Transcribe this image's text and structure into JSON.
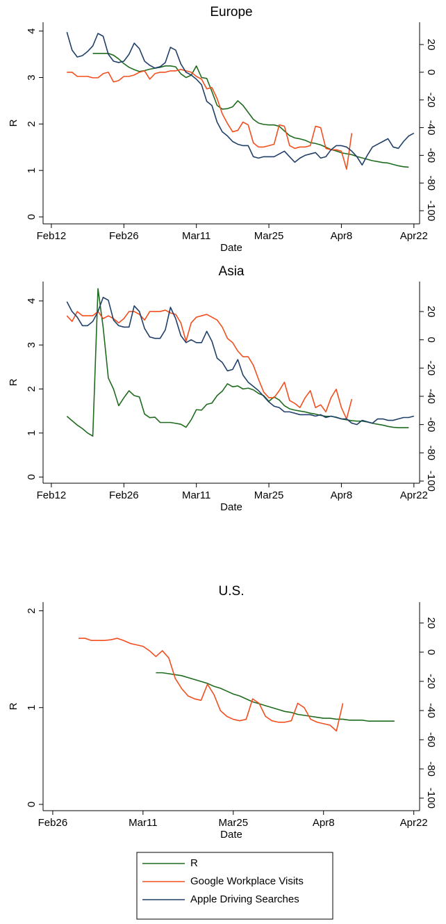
{
  "chart_data": [
    {
      "type": "line",
      "title": "Europe",
      "xlabel": "Date",
      "ylabel": "R",
      "x": [
        46,
        47,
        48,
        49,
        50,
        51,
        52,
        53,
        54,
        55,
        56,
        57,
        58,
        59,
        60,
        61,
        62,
        63,
        64,
        65,
        66,
        67,
        68,
        69,
        70,
        71,
        72,
        73,
        74,
        75,
        76,
        77,
        78,
        79,
        80,
        81,
        82,
        83,
        84,
        85,
        86,
        87,
        88,
        89,
        90,
        91,
        92,
        93,
        94,
        95,
        96,
        97,
        98,
        99,
        100,
        101,
        102,
        103,
        104,
        105,
        106,
        107,
        108,
        109,
        110,
        111,
        112,
        113
      ],
      "xlim": [
        41.4,
        114.1
      ],
      "xticks": [
        {
          "value": 43,
          "label": "Feb12"
        },
        {
          "value": 57,
          "label": "Feb26"
        },
        {
          "value": 71,
          "label": "Mar11"
        },
        {
          "value": 85,
          "label": "Mar25"
        },
        {
          "value": 99,
          "label": "Apr8"
        },
        {
          "value": 113,
          "label": "Apr22"
        }
      ],
      "ylim": [
        -0.15,
        4.19
      ],
      "yticks": [
        0,
        1,
        2,
        3,
        4
      ],
      "y2lim": [
        -109.5,
        36.1
      ],
      "y2ticks": [
        -100,
        -80,
        -60,
        -40,
        -20,
        0,
        20
      ],
      "series": [
        {
          "name": "R",
          "color": "#1e6b1e",
          "values": [
            null,
            null,
            null,
            null,
            null,
            3.52,
            3.52,
            3.52,
            3.52,
            3.48,
            3.4,
            3.3,
            3.22,
            3.17,
            3.13,
            3.15,
            3.18,
            3.2,
            3.22,
            3.25,
            3.25,
            3.23,
            3.08,
            3.0,
            3.05,
            3.25,
            3.0,
            2.98,
            2.7,
            2.4,
            2.32,
            2.33,
            2.37,
            2.5,
            2.4,
            2.25,
            2.1,
            2.02,
            1.99,
            1.98,
            1.98,
            1.95,
            1.85,
            1.75,
            1.7,
            1.68,
            1.65,
            1.6,
            1.58,
            1.55,
            1.5,
            1.45,
            1.42,
            1.38,
            1.36,
            1.34,
            1.3,
            1.27,
            1.24,
            1.21,
            1.19,
            1.17,
            1.16,
            1.13,
            1.1,
            1.08,
            1.07,
            null
          ]
        },
        {
          "name": "Google Workplace Visits",
          "color": "#f24e1e",
          "axis": "y2",
          "values": [
            0,
            0,
            -3,
            -3,
            -3,
            -4,
            -4,
            -1,
            0,
            -7,
            -6,
            -3,
            -3,
            -2,
            0,
            1,
            -5,
            -1,
            0,
            0,
            1,
            1,
            2,
            1,
            0,
            -3,
            -5,
            -12,
            -11,
            -19,
            -30,
            -37,
            -43,
            -42,
            -36,
            -38,
            -51,
            -54,
            -54,
            -53,
            -52,
            -38,
            -39,
            -53,
            -55,
            -54,
            -54,
            -53,
            -39,
            -40,
            -55,
            -56,
            -56,
            -57,
            -70,
            -44,
            null,
            null,
            null,
            null,
            null,
            null,
            null,
            null,
            null,
            null,
            null,
            null
          ]
        },
        {
          "name": "Apple Driving Searches",
          "color": "#1f3f68",
          "axis": "y2",
          "values": [
            29,
            16,
            11,
            12,
            15,
            19,
            28,
            26,
            13,
            8,
            7,
            8,
            13,
            21,
            17,
            8,
            5,
            3,
            4,
            7,
            18,
            16,
            6,
            0,
            -2,
            -5,
            -9,
            -21,
            -24,
            -36,
            -43,
            -46,
            -50,
            -52,
            -53,
            -53,
            -61,
            -62,
            -61,
            -61,
            -61,
            -59,
            -57,
            -61,
            -65,
            -62,
            -60,
            -59,
            -58,
            -62,
            -61,
            -56,
            -53,
            -53,
            -54,
            -57,
            -61,
            -67,
            -60,
            -54,
            -52,
            -50,
            -48,
            -54,
            -55,
            -50,
            -46,
            -44
          ]
        }
      ]
    },
    {
      "type": "line",
      "title": "Asia",
      "xlabel": "Date",
      "ylabel": "R",
      "x": [
        46,
        47,
        48,
        49,
        50,
        51,
        52,
        53,
        54,
        55,
        56,
        57,
        58,
        59,
        60,
        61,
        62,
        63,
        64,
        65,
        66,
        67,
        68,
        69,
        70,
        71,
        72,
        73,
        74,
        75,
        76,
        77,
        78,
        79,
        80,
        81,
        82,
        83,
        84,
        85,
        86,
        87,
        88,
        89,
        90,
        91,
        92,
        93,
        94,
        95,
        96,
        97,
        98,
        99,
        100,
        101,
        102,
        103,
        104,
        105,
        106,
        107,
        108,
        109,
        110,
        111,
        112,
        113
      ],
      "xlim": [
        41.4,
        114.1
      ],
      "xticks": [
        {
          "value": 43,
          "label": "Feb12"
        },
        {
          "value": 57,
          "label": "Feb26"
        },
        {
          "value": 71,
          "label": "Mar11"
        },
        {
          "value": 85,
          "label": "Mar25"
        },
        {
          "value": 99,
          "label": "Apr8"
        },
        {
          "value": 113,
          "label": "Apr22"
        }
      ],
      "ylim": [
        -0.14,
        4.44
      ],
      "yticks": [
        0,
        1,
        2,
        3,
        4
      ],
      "y2lim": [
        -101.5,
        41.2
      ],
      "y2ticks": [
        -100,
        -80,
        -60,
        -40,
        -20,
        0,
        20
      ],
      "series": [
        {
          "name": "R",
          "color": "#1e6b1e",
          "values": [
            1.38,
            1.28,
            1.18,
            1.1,
            1.0,
            0.93,
            4.28,
            3.4,
            2.25,
            2.0,
            1.62,
            1.8,
            1.96,
            1.85,
            1.82,
            1.43,
            1.35,
            1.36,
            1.24,
            1.24,
            1.24,
            1.22,
            1.2,
            1.13,
            1.3,
            1.53,
            1.52,
            1.65,
            1.68,
            1.85,
            1.95,
            2.12,
            2.05,
            2.07,
            2.0,
            2.02,
            1.98,
            1.9,
            1.85,
            1.72,
            1.82,
            1.75,
            1.62,
            1.55,
            1.52,
            1.5,
            1.48,
            1.45,
            1.43,
            1.4,
            1.38,
            1.38,
            1.36,
            1.32,
            1.3,
            1.28,
            1.27,
            1.27,
            1.25,
            1.22,
            1.2,
            1.18,
            1.15,
            1.13,
            1.12,
            1.12,
            1.12,
            null
          ]
        },
        {
          "name": "Google Workplace Visits",
          "color": "#f24e1e",
          "axis": "y2",
          "values": [
            17,
            13,
            20,
            17,
            17,
            17,
            20,
            15,
            17,
            15,
            12,
            15,
            20,
            20,
            18,
            14,
            20,
            20,
            20,
            21,
            19,
            18,
            12,
            -1,
            12,
            16,
            17,
            18,
            16,
            14,
            9,
            1,
            -2,
            -8,
            -12,
            -12,
            -18,
            -28,
            -37,
            -41,
            -41,
            -36,
            -30,
            -43,
            -45,
            -48,
            -41,
            -36,
            -48,
            -46,
            -51,
            -41,
            -35,
            -48,
            -56,
            -42,
            null,
            null,
            null,
            null,
            null,
            null,
            null,
            null,
            null,
            null,
            null,
            null
          ]
        },
        {
          "name": "Apple Driving Searches",
          "color": "#1f3f68",
          "axis": "y2",
          "values": [
            27,
            20,
            16,
            10,
            10,
            13,
            20,
            30,
            28,
            14,
            10,
            9,
            9,
            24,
            20,
            8,
            2,
            1,
            1,
            7,
            23,
            15,
            3,
            -2,
            0,
            -2,
            -2,
            6,
            -1,
            -13,
            -16,
            -22,
            -21,
            -14,
            -25,
            -30,
            -33,
            -36,
            -40,
            -44,
            -47,
            -48,
            -51,
            -51,
            -52,
            -53,
            -53,
            -53,
            -54,
            -53,
            -55,
            -54,
            -55,
            -56,
            -56,
            -59,
            -60,
            -57,
            -58,
            -59,
            -56,
            -56,
            -57,
            -57,
            -56,
            -55,
            -55,
            -54
          ]
        }
      ]
    },
    {
      "type": "line",
      "title": "U.S.",
      "xlabel": "Date",
      "ylabel": "R",
      "x": [
        61,
        62,
        63,
        64,
        65,
        66,
        67,
        68,
        69,
        70,
        71,
        72,
        73,
        74,
        75,
        76,
        77,
        78,
        79,
        80,
        81,
        82,
        83,
        84,
        85,
        86,
        87,
        88,
        89,
        90,
        91,
        92,
        93,
        94,
        95,
        96,
        97,
        98,
        99,
        100,
        101,
        102,
        103,
        104,
        105,
        106,
        107,
        108,
        109,
        110
      ],
      "xlim": [
        55.5,
        113.9
      ],
      "xticks": [
        {
          "value": 57,
          "label": "Feb26"
        },
        {
          "value": 71,
          "label": "Mar11"
        },
        {
          "value": 85,
          "label": "Mar25"
        },
        {
          "value": 99,
          "label": "Apr8"
        },
        {
          "value": 113,
          "label": "Apr22"
        }
      ],
      "ylim": [
        -0.065,
        2.09
      ],
      "yticks": [
        0,
        1,
        2
      ],
      "y2lim": [
        -108.6,
        34.3
      ],
      "y2ticks": [
        -100,
        -80,
        -60,
        -40,
        -20,
        0,
        20
      ],
      "series": [
        {
          "name": "R",
          "color": "#1e6b1e",
          "values": [
            null,
            null,
            null,
            null,
            null,
            null,
            null,
            null,
            null,
            null,
            null,
            null,
            1.36,
            1.36,
            1.35,
            1.34,
            1.33,
            1.31,
            1.29,
            1.27,
            1.25,
            1.22,
            1.2,
            1.17,
            1.14,
            1.12,
            1.09,
            1.06,
            1.04,
            1.02,
            1.0,
            0.98,
            0.96,
            0.95,
            0.93,
            0.92,
            0.91,
            0.9,
            0.89,
            0.89,
            0.88,
            0.88,
            0.87,
            0.87,
            0.87,
            0.86,
            0.86,
            0.86,
            0.86,
            0.86
          ]
        },
        {
          "name": "Google Workplace Visits",
          "color": "#f24e1e",
          "axis": "y2",
          "values": [
            9.5,
            9.5,
            8,
            8,
            8,
            8.5,
            9.5,
            8,
            6,
            5,
            4,
            1,
            -3,
            1,
            -4,
            -18,
            -25,
            -30,
            -32,
            -33,
            -22,
            -29,
            -40,
            -44,
            -46,
            -47,
            -46,
            -32,
            -35,
            -44,
            -47,
            -48,
            -48,
            -47,
            -35,
            -38,
            -46,
            -48,
            -49,
            -50,
            -54,
            -35,
            null,
            null,
            null,
            null,
            null,
            null,
            null,
            null
          ]
        }
      ]
    }
  ]
}
